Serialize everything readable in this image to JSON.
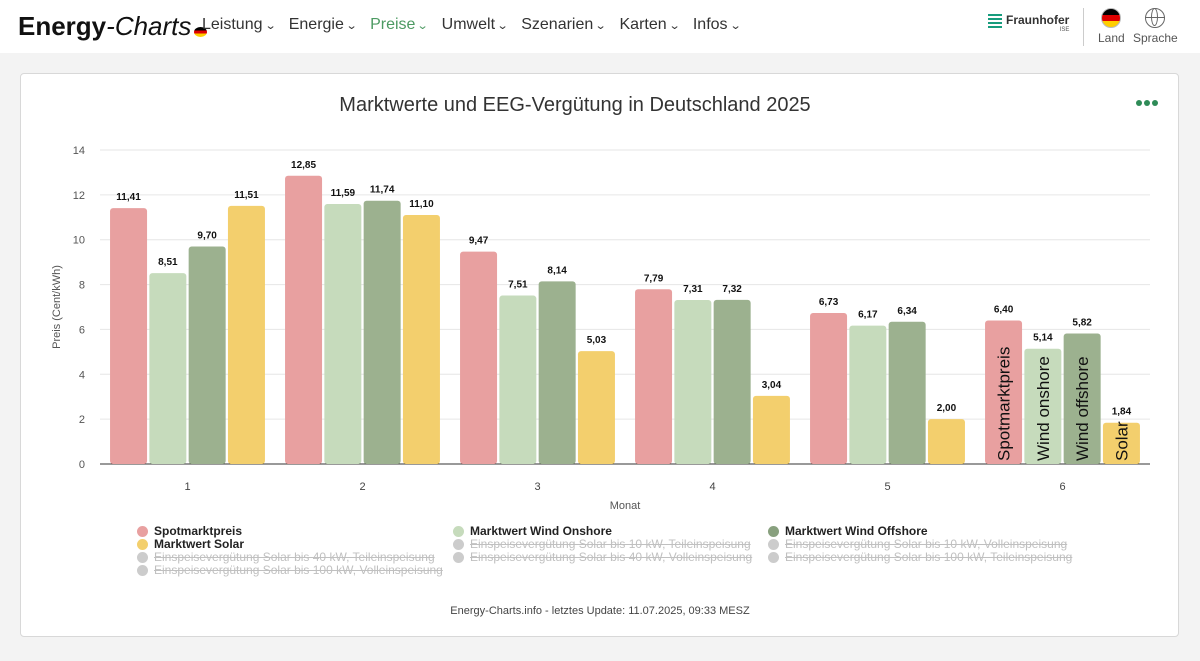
{
  "brand": {
    "part1": "Energy",
    "part2": "-Charts"
  },
  "nav": [
    {
      "label": "Leistung",
      "active": false
    },
    {
      "label": "Energie",
      "active": false
    },
    {
      "label": "Preise",
      "active": true
    },
    {
      "label": "Umwelt",
      "active": false
    },
    {
      "label": "Szenarien",
      "active": false
    },
    {
      "label": "Karten",
      "active": false
    },
    {
      "label": "Infos",
      "active": false
    }
  ],
  "partner": {
    "name": "Fraunhofer",
    "sub": "ISE"
  },
  "tools": {
    "country": "Land",
    "language": "Sprache"
  },
  "menu_icon": "more-dots-icon",
  "footer": "Energy-Charts.info - letztes Update: 11.07.2025, 09:33 MESZ",
  "chart_data": {
    "type": "bar",
    "title": "Marktwerte und EEG-Vergütung in Deutschland 2025",
    "xlabel": "Monat",
    "ylabel": "Preis (Cent/kWh)",
    "ylim": [
      0,
      14
    ],
    "yticks": [
      "0",
      "2",
      "4",
      "6",
      "8",
      "10",
      "12",
      "14"
    ],
    "grid": true,
    "categories": [
      "1",
      "2",
      "3",
      "4",
      "5",
      "6"
    ],
    "series": [
      {
        "name": "Spotmarktpreis",
        "color": "#e8a0a0",
        "values": [
          11.41,
          12.85,
          9.47,
          7.79,
          6.73,
          6.4
        ],
        "labels": [
          "11,41",
          "12,85",
          "9,47",
          "7,79",
          "6,73",
          "6,40"
        ]
      },
      {
        "name": "Marktwert Wind Onshore",
        "color": "#c6dbbc",
        "values": [
          8.51,
          11.59,
          7.51,
          7.31,
          6.17,
          5.14
        ],
        "labels": [
          "8,51",
          "11,59",
          "7,51",
          "7,31",
          "6,17",
          "5,14"
        ]
      },
      {
        "name": "Marktwert Wind Offshore",
        "color": "#9cb18f",
        "values": [
          9.7,
          11.74,
          8.14,
          7.32,
          6.34,
          5.82
        ],
        "labels": [
          "9,70",
          "11,74",
          "8,14",
          "7,32",
          "6,34",
          "5,82"
        ]
      },
      {
        "name": "Marktwert Solar",
        "color": "#f3cf6d",
        "values": [
          11.51,
          11.1,
          5.03,
          3.04,
          2.0,
          1.84
        ],
        "labels": [
          "11,51",
          "11,10",
          "5,03",
          "3,04",
          "2,00",
          "1,84"
        ]
      }
    ],
    "in_bar_labels": {
      "category": "6",
      "texts": [
        "Spotmarktpreis",
        "Wind onshore",
        "Wind offshore",
        "Solar"
      ]
    },
    "legend": [
      {
        "name": "Spotmarktpreis",
        "color": "#e8a0a0",
        "visible": true
      },
      {
        "name": "Marktwert Wind Onshore",
        "color": "#c6dbbc",
        "visible": true
      },
      {
        "name": "Marktwert Wind Offshore",
        "color": "#88a07e",
        "visible": true
      },
      {
        "name": "Marktwert Solar",
        "color": "#f3cf6d",
        "visible": true
      },
      {
        "name": "Einspeisevergütung Solar bis 10 kW, Teileinspeisung",
        "color": "#cccccc",
        "visible": false
      },
      {
        "name": "Einspeisevergütung Solar bis 10 kW, Volleinspeisung",
        "color": "#cccccc",
        "visible": false
      },
      {
        "name": "Einspeisevergütung Solar bis 40 kW, Teileinspeisung",
        "color": "#cccccc",
        "visible": false
      },
      {
        "name": "Einspeisevergütung Solar bis 40 kW, Volleinspeisung",
        "color": "#cccccc",
        "visible": false
      },
      {
        "name": "Einspeisevergütung Solar bis 100 kW, Teileinspeisung",
        "color": "#cccccc",
        "visible": false
      },
      {
        "name": "Einspeisevergütung Solar bis 100 kW, Volleinspeisung",
        "color": "#cccccc",
        "visible": false
      }
    ]
  }
}
